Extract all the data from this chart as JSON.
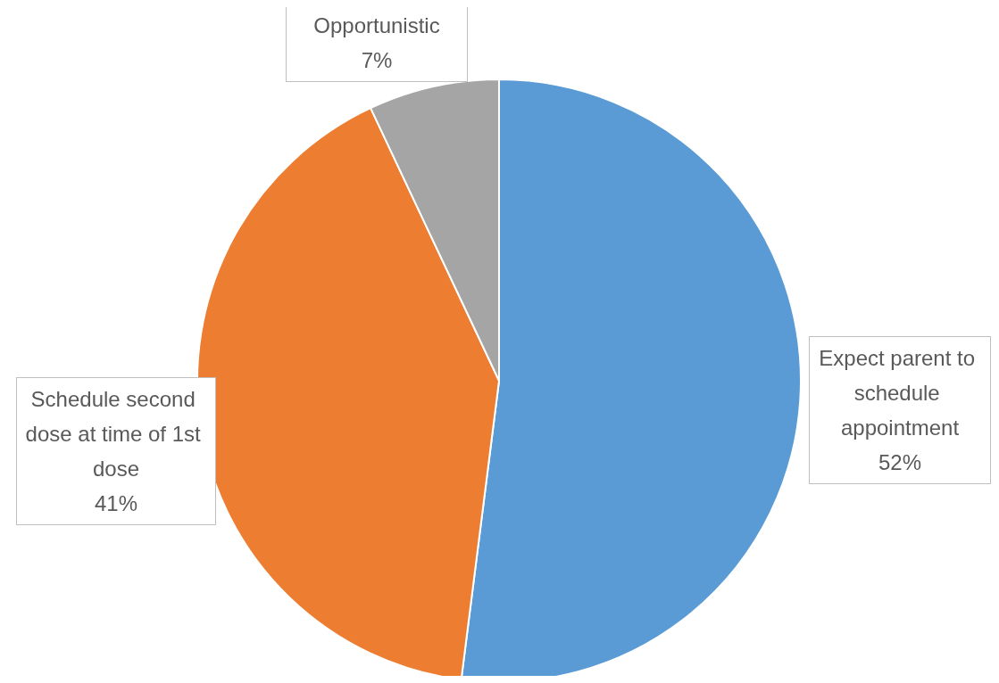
{
  "chart_data": {
    "type": "pie",
    "categories": [
      "Expect parent to schedule appointment",
      "Schedule second dose at time of 1st dose",
      "Opportunistic"
    ],
    "values": [
      52,
      41,
      7
    ],
    "value_labels": [
      "52%",
      "41%",
      "7%"
    ],
    "colors": [
      "#5b9bd5",
      "#ed7d31",
      "#a5a5a5"
    ],
    "legend": false
  }
}
